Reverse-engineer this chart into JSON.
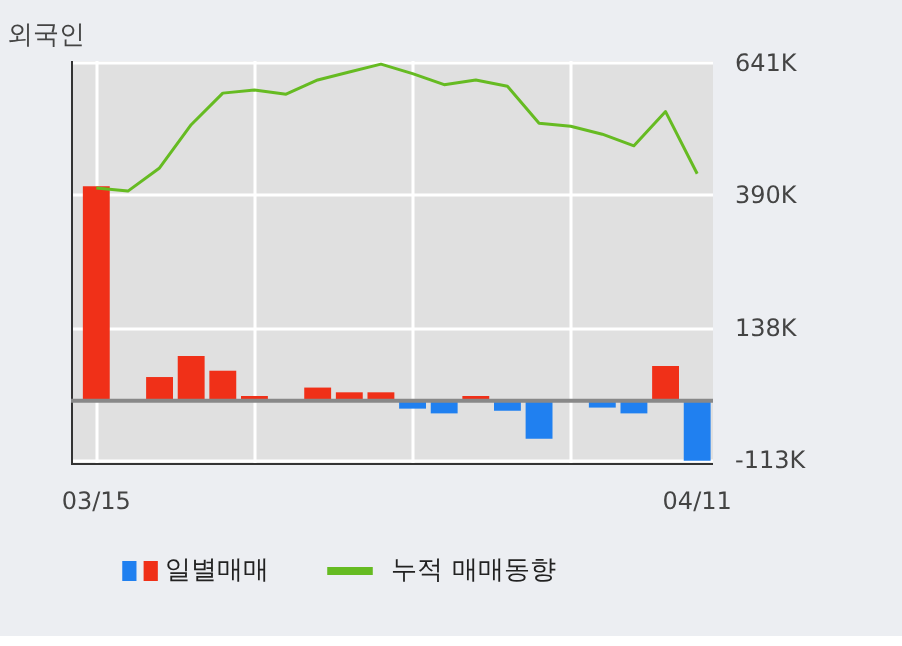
{
  "chart_data": {
    "type": "bar",
    "title": "외국인",
    "categories": [
      "03/15",
      null,
      null,
      null,
      null,
      null,
      null,
      null,
      null,
      null,
      null,
      null,
      null,
      null,
      null,
      null,
      null,
      null,
      null,
      "04/11"
    ],
    "series": [
      {
        "name": "일별매매",
        "colors": [
          "#f03018",
          "#f03018",
          "#f03018",
          "#f03018",
          "#f03018",
          "#f03018",
          "#f03018",
          "#f03018",
          "#f03018",
          "#f03018",
          "#2080f0",
          "#2080f0",
          "#f03018",
          "#2080f0",
          "#2080f0",
          "#2080f0",
          "#2080f0",
          "#2080f0",
          "#f03018",
          "#2080f0"
        ],
        "values": [
          407,
          0,
          45,
          85,
          57,
          9,
          0,
          25,
          16,
          16,
          -15,
          -24,
          9,
          -19,
          -72,
          0,
          -13,
          -24,
          66,
          -114
        ]
      },
      {
        "name": "누적 매매동향",
        "type": "line",
        "color": "#66bb22",
        "values": [
          404,
          398,
          442,
          524,
          584,
          590,
          582,
          609,
          624,
          639,
          621,
          600,
          609,
          597,
          527,
          521,
          506,
          484,
          549,
          431
        ]
      }
    ],
    "ylim": [
      -122,
      645
    ],
    "yticks": [
      {
        "value": -113,
        "label": "-113K"
      },
      {
        "value": 138,
        "label": "138K"
      },
      {
        "value": 390,
        "label": "390K"
      },
      {
        "value": 641,
        "label": "641K"
      }
    ],
    "ref_lines": [
      {
        "axis": "y",
        "value": 0,
        "color": "#888888"
      }
    ],
    "grid": true,
    "legend": "bottom"
  }
}
